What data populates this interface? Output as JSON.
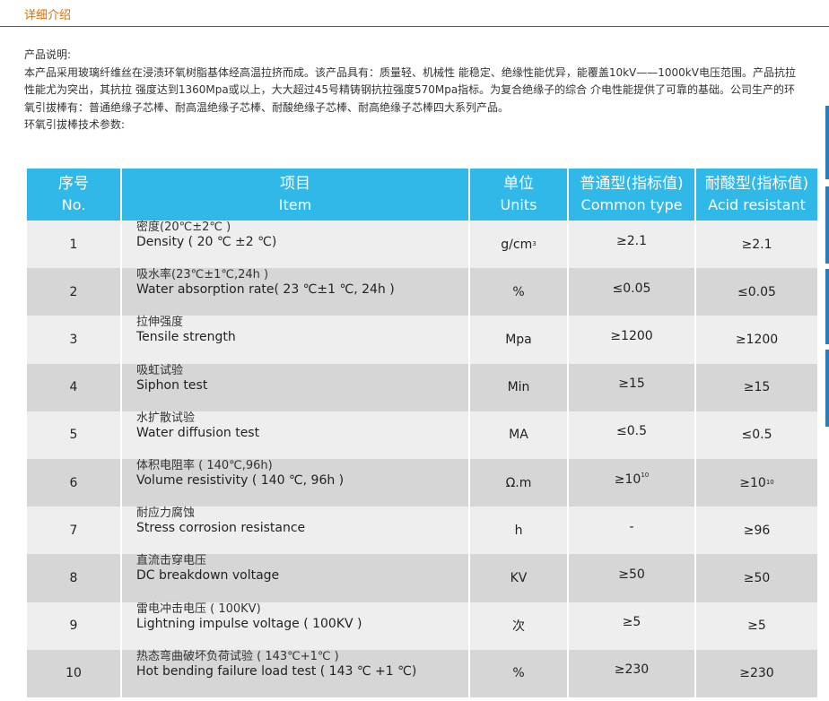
{
  "section_title": "详细介绍",
  "intro": {
    "heading": "产品说明:",
    "paragraph": "本产品采用玻璃纤维丝在浸渍环氧树脂基体经高温拉挤而成。该产品具有：质量轻、机械性 能稳定、绝缘性能优异，能覆盖10kV——1000kV电压范围。产品抗拉性能尤为突出，其抗拉 强度达到1360Mpa或以上，大大超过45号精铸钢抗拉强度570Mpa指标。为复合绝缘子的综合 介电性能提供了可靠的基础。公司生产的环氧引拔棒有：普通绝缘子芯棒、耐高温绝缘子芯棒、耐酸绝缘子芯棒、耐高绝缘子芯棒四大系列产品。",
    "params_heading": "环氧引拔棒技术参数:"
  },
  "table": {
    "headers": [
      {
        "zh": "序号",
        "en": "No."
      },
      {
        "zh": "项目",
        "en": "Item"
      },
      {
        "zh": "单位",
        "en": "Units"
      },
      {
        "zh": "普通型(指标值)",
        "en": "Common type"
      },
      {
        "zh": "耐酸型(指标值)",
        "en": "Acid resistant"
      }
    ],
    "rows": [
      {
        "no": "1",
        "zh": "密度(20℃±2℃ )",
        "en": "Density ( 20 ℃ ±2 ℃)",
        "unit": "g/cm",
        "unit_sup": "3",
        "common": "≥2.1",
        "common_sup": "",
        "acid": "≥2.1",
        "acid_sup": ""
      },
      {
        "no": "2",
        "zh": "吸水率(23℃±1℃,24h )",
        "en": "Water absorption rate( 23 ℃±1 ℃, 24h )",
        "unit": "%",
        "unit_sup": "",
        "common": "≤0.05",
        "common_sup": "",
        "acid": "≤0.05",
        "acid_sup": ""
      },
      {
        "no": "3",
        "zh": "拉伸强度",
        "en": "Tensile strength",
        "unit": "Mpa",
        "unit_sup": "",
        "common": "≥1200",
        "common_sup": "",
        "acid": "≥1200",
        "acid_sup": ""
      },
      {
        "no": "4",
        "zh": "吸虹试验",
        "en": "Siphon test",
        "unit": "Min",
        "unit_sup": "",
        "common": "≥15",
        "common_sup": "",
        "acid": "≥15",
        "acid_sup": ""
      },
      {
        "no": "5",
        "zh": "水扩散试验",
        "en": "Water diffusion test",
        "unit": "MA",
        "unit_sup": "",
        "common": "≤0.5",
        "common_sup": "",
        "acid": "≤0.5",
        "acid_sup": ""
      },
      {
        "no": "6",
        "zh": "体积电阻率 ( 140℃,96h)",
        "en": "Volume resistivity ( 140 ℃, 96h )",
        "unit": "Ω.m",
        "unit_sup": "",
        "common": "≥10",
        "common_sup": "10",
        "acid": "≥10",
        "acid_sup": "10"
      },
      {
        "no": "7",
        "zh": "耐应力腐蚀",
        "en": "Stress corrosion resistance",
        "unit": "h",
        "unit_sup": "",
        "common": "-",
        "common_sup": "",
        "acid": "≥96",
        "acid_sup": ""
      },
      {
        "no": "8",
        "zh": "直流击穿电压",
        "en": "DC breakdown voltage",
        "unit": "KV",
        "unit_sup": "",
        "common": "≥50",
        "common_sup": "",
        "acid": "≥50",
        "acid_sup": ""
      },
      {
        "no": "9",
        "zh": "雷电冲击电压 ( 100KV)",
        "en": "Lightning impulse voltage ( 100KV )",
        "unit": "次",
        "unit_sup": "",
        "common": "≥5",
        "common_sup": "",
        "acid": "≥5",
        "acid_sup": ""
      },
      {
        "no": "10",
        "zh": "热态弯曲破坏负荷试验 ( 143℃+1℃ )",
        "en": "Hot bending failure load test ( 143 ℃ +1 ℃)",
        "unit": "%",
        "unit_sup": "",
        "common": "≥230",
        "common_sup": "",
        "acid": "≥230",
        "acid_sup": ""
      }
    ]
  },
  "colors": {
    "accent_orange": "#e06d00",
    "header_blue": "#2fb8e8",
    "divider_blue": "#1a6ea8",
    "row_light": "#eeeeee",
    "row_dark": "#d6d6d6"
  }
}
